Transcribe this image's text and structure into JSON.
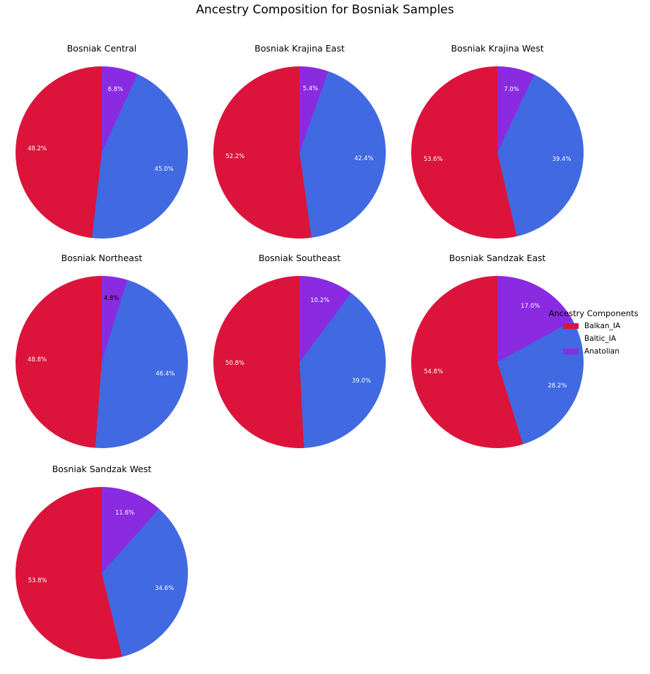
{
  "title": "Ancestry Composition for Bosniak Samples",
  "legend": {
    "title": "Ancestry Components",
    "entries": [
      {
        "label": "Balkan_IA",
        "color": "#dc143c"
      },
      {
        "label": "Baltic_IA",
        "color": "#4169e1"
      },
      {
        "label": "Anatolian",
        "color": "#8a2be2"
      }
    ]
  },
  "chart_data": {
    "type": "pie",
    "title": "Ancestry Composition for Bosniak Samples",
    "components": [
      "Balkan_IA",
      "Baltic_IA",
      "Anatolian"
    ],
    "colors": [
      "#dc143c",
      "#4169e1",
      "#8a2be2"
    ],
    "start_angle": 90,
    "direction": "counterclockwise",
    "label_format": "one_decimal_percent",
    "label_colors": {
      "default": "#ffffff",
      "below_5_percent": "#000000"
    },
    "legend_title": "Ancestry Components",
    "legend_position": "center right",
    "grid": {
      "columns": 3,
      "rows": 3
    },
    "pies": [
      {
        "title": "Bosniak Central",
        "values": [
          48.2,
          45.0,
          6.8
        ]
      },
      {
        "title": "Bosniak Krajina East",
        "values": [
          52.2,
          42.4,
          5.4
        ]
      },
      {
        "title": "Bosniak Krajina West",
        "values": [
          53.6,
          39.4,
          7.0
        ]
      },
      {
        "title": "Bosniak Northeast",
        "values": [
          48.8,
          46.4,
          4.8
        ]
      },
      {
        "title": "Bosniak Southeast",
        "values": [
          50.8,
          39.0,
          10.2
        ]
      },
      {
        "title": "Bosniak Sandzak East",
        "values": [
          54.8,
          28.2,
          17.0
        ]
      },
      {
        "title": "Bosniak Sandzak West",
        "values": [
          53.8,
          34.6,
          11.6
        ]
      }
    ]
  }
}
